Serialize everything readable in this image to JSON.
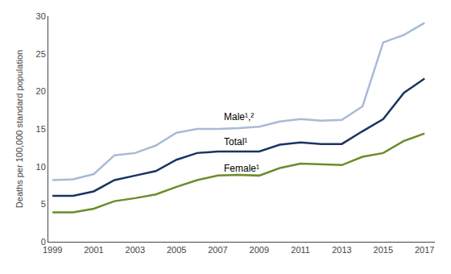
{
  "chart_data": {
    "type": "line",
    "x": [
      1999,
      2000,
      2001,
      2002,
      2003,
      2004,
      2005,
      2006,
      2007,
      2008,
      2009,
      2010,
      2011,
      2012,
      2013,
      2014,
      2015,
      2016,
      2017
    ],
    "series": [
      {
        "color": "#a8bbd4",
        "values": [
          8.2,
          8.3,
          9.0,
          11.5,
          11.8,
          12.8,
          14.5,
          15.0,
          15.0,
          15.1,
          15.3,
          16.0,
          16.3,
          16.1,
          16.2,
          18.0,
          26.5,
          27.5,
          29.1
        ]
      },
      {
        "color": "#1a3461",
        "values": [
          6.1,
          6.1,
          6.7,
          8.2,
          8.8,
          9.4,
          10.9,
          11.8,
          12.0,
          12.0,
          12.0,
          12.9,
          13.2,
          13.0,
          13.0,
          14.7,
          16.3,
          19.8,
          21.7
        ]
      },
      {
        "color": "#6b8c2a",
        "values": [
          3.9,
          3.9,
          4.4,
          5.4,
          5.8,
          6.3,
          7.3,
          8.2,
          8.8,
          8.9,
          8.8,
          9.8,
          10.4,
          10.3,
          10.2,
          11.3,
          11.8,
          13.4,
          14.4
        ]
      }
    ],
    "ylabel": "Deaths per 100,000 standard population",
    "xlim": [
      1998.8,
      2017.5
    ],
    "xticks": [
      1999,
      2001,
      2003,
      2005,
      2007,
      2009,
      2011,
      2013,
      2015,
      2017
    ],
    "ylim": [
      0,
      30
    ],
    "yticks": [
      0,
      5,
      10,
      15,
      20,
      25,
      30
    ],
    "grid": false,
    "annotations": [
      {
        "text": "Male¹,²",
        "x": 2007.2,
        "y": 15.6
      },
      {
        "text": "Total¹",
        "x": 2007.2,
        "y": 12.3
      },
      {
        "text": "Female¹",
        "x": 2007.2,
        "y": 8.8
      }
    ]
  }
}
